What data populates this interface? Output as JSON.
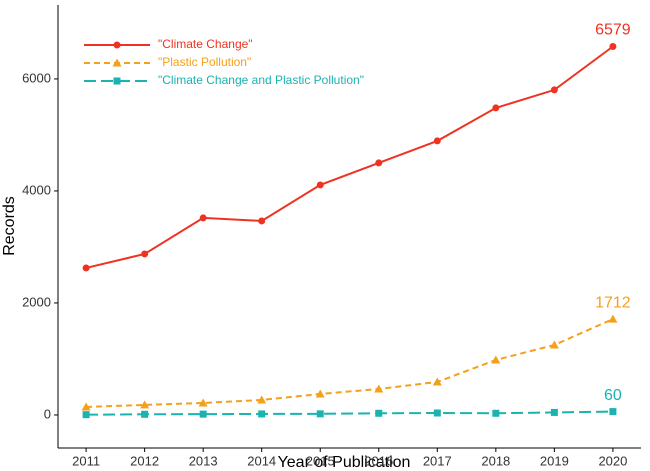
{
  "chart_data": {
    "type": "line",
    "x_label": "Year of Publication",
    "y_label": "Records",
    "x": [
      2011,
      2012,
      2013,
      2014,
      2015,
      2016,
      2017,
      2018,
      2019,
      2020
    ],
    "series": [
      {
        "name": "\"Climate Change\"",
        "color": "#ee3322",
        "marker": "circle",
        "dash": "solid",
        "values": [
          2625,
          2875,
          3518,
          3464,
          4107,
          4500,
          4893,
          5482,
          5804,
          6579
        ]
      },
      {
        "name": "\"Plastic Pollution\"",
        "color": "#f5a01a",
        "marker": "triangle",
        "dash": "dashed",
        "values": [
          143,
          179,
          214,
          268,
          375,
          464,
          589,
          982,
          1250,
          1712
        ]
      },
      {
        "name": "\"Climate Change and Plastic Pollution\"",
        "color": "#1ab3b0",
        "marker": "square",
        "dash": "longdash",
        "values": [
          5,
          12,
          15,
          18,
          20,
          30,
          35,
          30,
          45,
          60
        ]
      }
    ],
    "xlim": [
      2010.52,
      2020.48
    ],
    "xticks": [
      2011,
      2012,
      2013,
      2014,
      2015,
      2016,
      2017,
      2018,
      2019,
      2020
    ],
    "ylim": [
      -590,
      7320
    ],
    "yticks": [
      0,
      2000,
      4000,
      6000
    ],
    "grid": false,
    "legend": "top-left"
  }
}
